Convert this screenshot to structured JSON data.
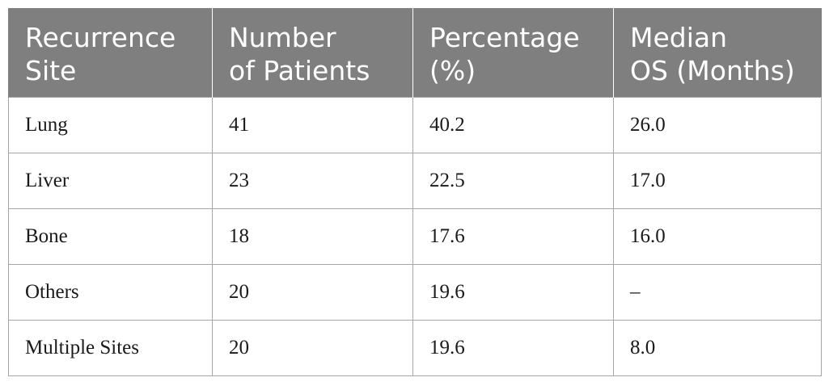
{
  "table": {
    "headers": [
      [
        "Recurrence",
        "Site"
      ],
      [
        "Number",
        "of Patients"
      ],
      [
        "Percentage",
        "(%)"
      ],
      [
        "Median",
        "OS (Months)"
      ]
    ],
    "rows": [
      [
        "Lung",
        "41",
        "40.2",
        "26.0"
      ],
      [
        "Liver",
        "23",
        "22.5",
        "17.0"
      ],
      [
        "Bone",
        "18",
        "17.6",
        "16.0"
      ],
      [
        "Others",
        "20",
        "19.6",
        "–"
      ],
      [
        "Multiple Sites",
        "20",
        "19.6",
        "8.0"
      ]
    ]
  },
  "colors": {
    "header_background": "#7f7f7f",
    "header_text": "#ffffff",
    "border": "#a6a6a6"
  }
}
